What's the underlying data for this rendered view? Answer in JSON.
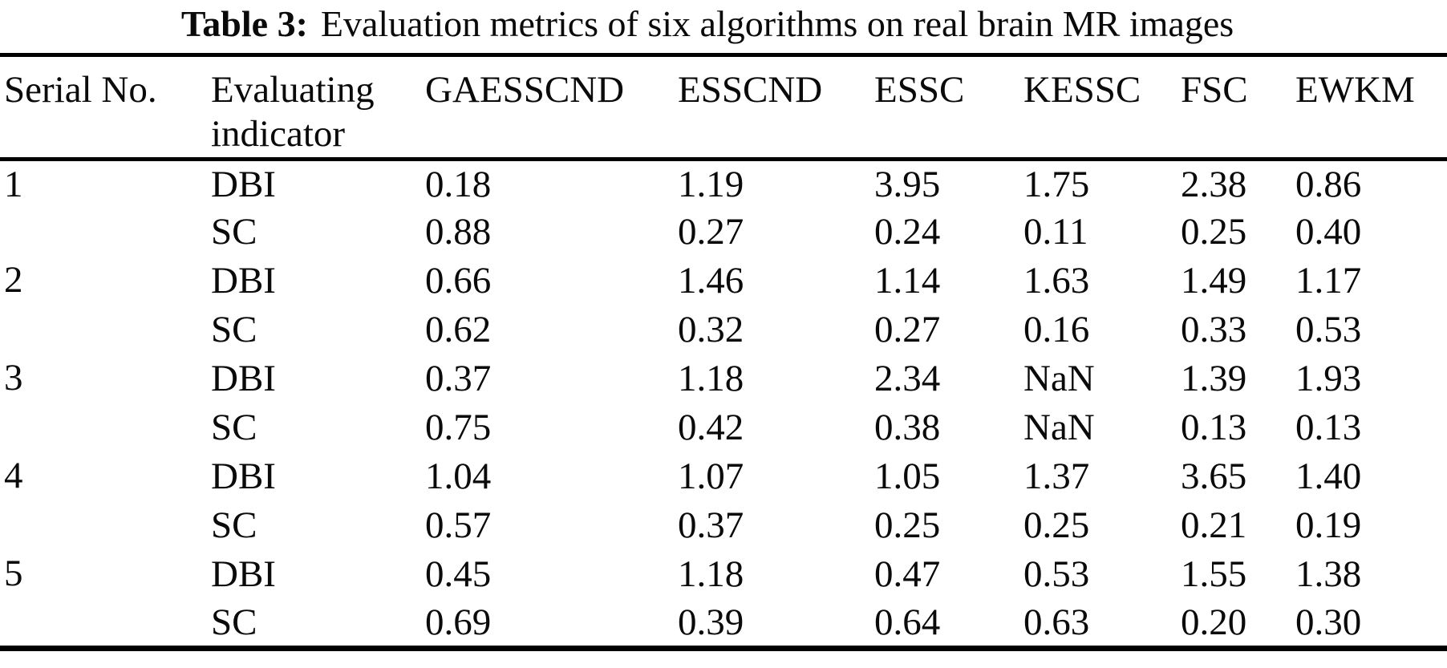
{
  "page": {
    "background": "#ffffff",
    "text_color": "#0a0a0a",
    "rule_color": "#000000"
  },
  "title": {
    "label": "Table 3:",
    "text": "Evaluation metrics of six algorithms on real brain MR images"
  },
  "table": {
    "headers": [
      "Serial No.",
      "Evaluating indicator",
      "GAESSCND",
      "ESSCND",
      "ESSC",
      "KESSC",
      "FSC",
      "EWKM"
    ],
    "algorithms": [
      "GAESSCND",
      "ESSCND",
      "ESSC",
      "KESSC",
      "FSC",
      "EWKM"
    ],
    "groups": [
      {
        "serial": "1",
        "rows": [
          {
            "indicator": "DBI",
            "values": [
              "0.18",
              "1.19",
              "3.95",
              "1.75",
              "2.38",
              "0.86"
            ]
          },
          {
            "indicator": "SC",
            "values": [
              "0.88",
              "0.27",
              "0.24",
              "0.11",
              "0.25",
              "0.40"
            ]
          }
        ]
      },
      {
        "serial": "2",
        "rows": [
          {
            "indicator": "DBI",
            "values": [
              "0.66",
              "1.46",
              "1.14",
              "1.63",
              "1.49",
              "1.17"
            ]
          },
          {
            "indicator": "SC",
            "values": [
              "0.62",
              "0.32",
              "0.27",
              "0.16",
              "0.33",
              "0.53"
            ]
          }
        ]
      },
      {
        "serial": "3",
        "rows": [
          {
            "indicator": "DBI",
            "values": [
              "0.37",
              "1.18",
              "2.34",
              "NaN",
              "1.39",
              "1.93"
            ]
          },
          {
            "indicator": "SC",
            "values": [
              "0.75",
              "0.42",
              "0.38",
              "NaN",
              "0.13",
              "0.13"
            ]
          }
        ]
      },
      {
        "serial": "4",
        "rows": [
          {
            "indicator": "DBI",
            "values": [
              "1.04",
              "1.07",
              "1.05",
              "1.37",
              "3.65",
              "1.40"
            ]
          },
          {
            "indicator": "SC",
            "values": [
              "0.57",
              "0.37",
              "0.25",
              "0.25",
              "0.21",
              "0.19"
            ]
          }
        ]
      },
      {
        "serial": "5",
        "rows": [
          {
            "indicator": "DBI",
            "values": [
              "0.45",
              "1.18",
              "0.47",
              "0.53",
              "1.55",
              "1.38"
            ]
          },
          {
            "indicator": "SC",
            "values": [
              "0.69",
              "0.39",
              "0.64",
              "0.63",
              "0.20",
              "0.30"
            ]
          }
        ]
      }
    ]
  }
}
